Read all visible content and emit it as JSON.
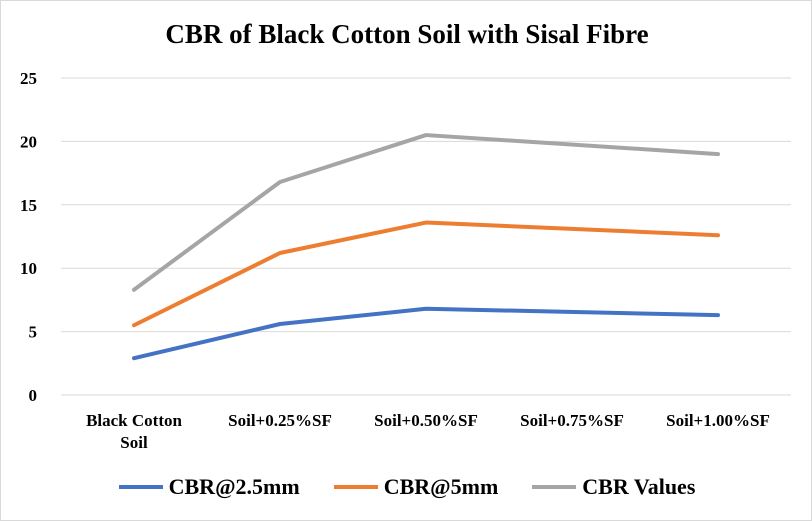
{
  "chart_data": {
    "type": "line",
    "title": "CBR of Black Cotton Soil with Sisal Fibre",
    "categories": [
      [
        "Black Cotton",
        "Soil"
      ],
      [
        "Soil+0.25%SF"
      ],
      [
        "Soil+0.50%SF"
      ],
      [
        "Soil+0.75%SF"
      ],
      [
        "Soil+1.00%SF"
      ]
    ],
    "ylim": [
      0,
      25
    ],
    "yticks": [
      "0",
      "5",
      "10",
      "15",
      "20",
      "25"
    ],
    "grid": true,
    "legend_position": "bottom",
    "series": [
      {
        "name": "CBR@2.5mm",
        "color": "#4472C4",
        "values": [
          2.9,
          5.6,
          6.8,
          null,
          6.3
        ]
      },
      {
        "name": "CBR@5mm",
        "color": "#ED7D31",
        "values": [
          5.5,
          11.2,
          13.6,
          null,
          12.6
        ]
      },
      {
        "name": "CBR Values",
        "color": "#A5A5A5",
        "values": [
          8.3,
          16.8,
          20.5,
          null,
          19.0
        ]
      }
    ]
  }
}
